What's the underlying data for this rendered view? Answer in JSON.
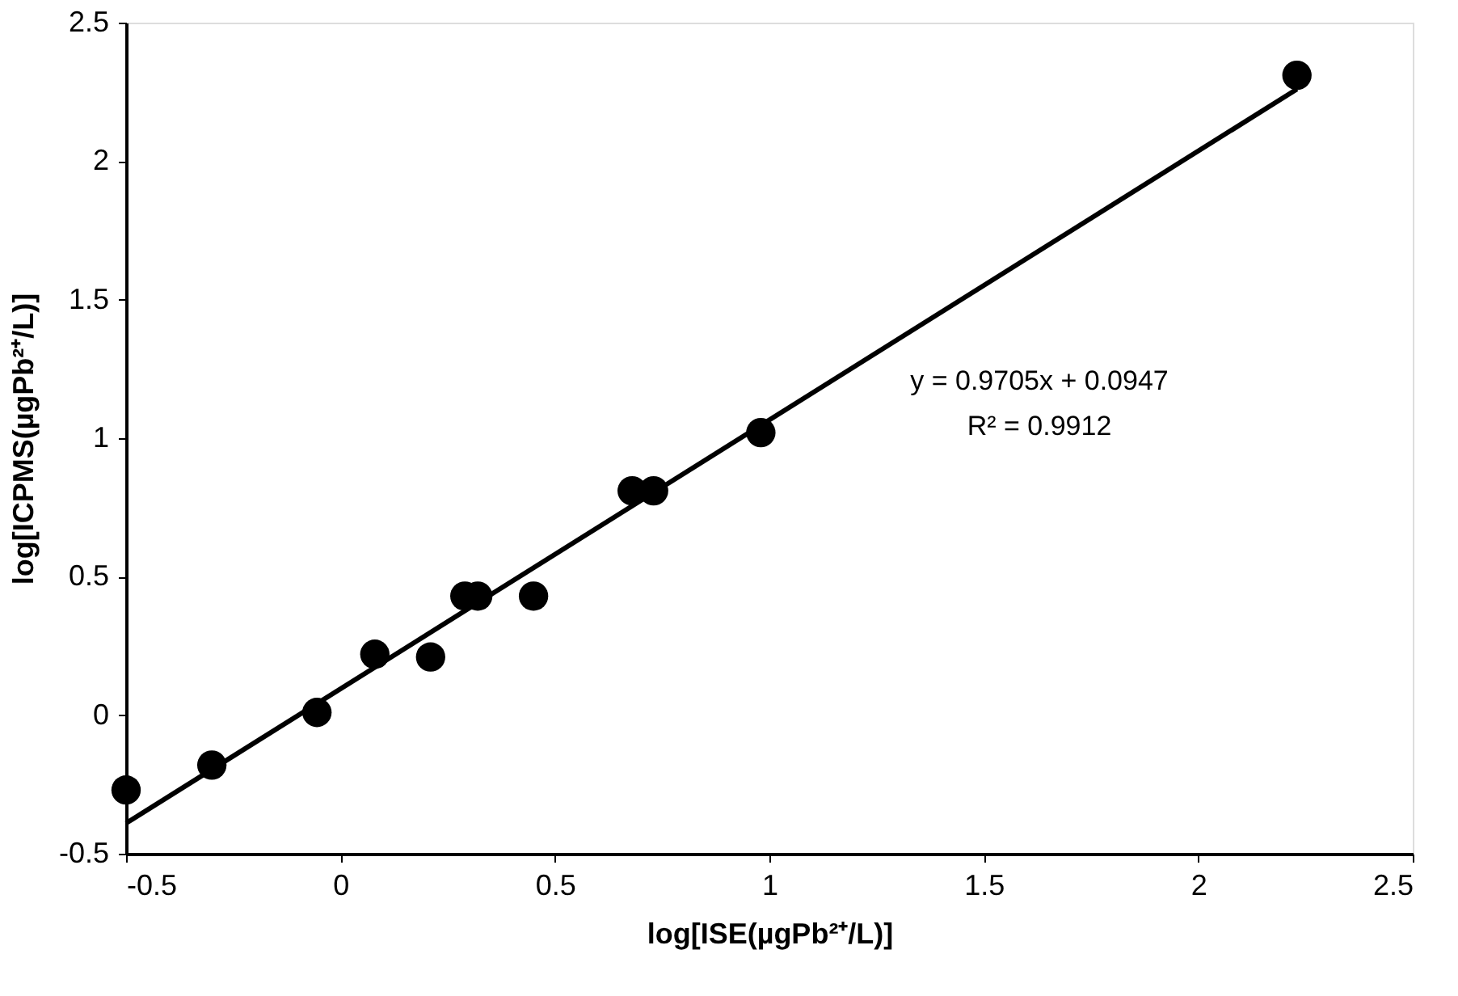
{
  "chart_data": {
    "type": "scatter",
    "xlabel": "log[ISE(µgPb²⁺/L)]",
    "ylabel": "log[ICPMS(µgPb²⁺/L)]",
    "annotations": [
      "y = 0.9705x + 0.0947",
      "R² = 0.9912"
    ],
    "series": [
      {
        "type": "scatter",
        "marker": "circle",
        "color": "#000000",
        "x": [
          -0.5,
          -0.3,
          -0.055,
          0.08,
          0.21,
          0.29,
          0.32,
          0.45,
          0.68,
          0.73,
          0.98,
          2.23
        ],
        "values": [
          -0.27,
          -0.18,
          0.01,
          0.22,
          0.21,
          0.43,
          0.43,
          0.43,
          0.81,
          0.81,
          1.02,
          2.31
        ]
      },
      {
        "type": "line",
        "marker": "none",
        "color": "#000000",
        "x": [
          -0.5,
          2.23
        ],
        "values": [
          -0.39,
          2.26
        ]
      }
    ],
    "xlim": [
      -0.5,
      2.5
    ],
    "ylim": [
      -0.5,
      2.5
    ],
    "xticks": [
      -0.5,
      0,
      0.5,
      1,
      1.5,
      2,
      2.5
    ],
    "yticks": [
      -0.5,
      0,
      0.5,
      1,
      1.5,
      2,
      2.5
    ],
    "grid": false
  }
}
